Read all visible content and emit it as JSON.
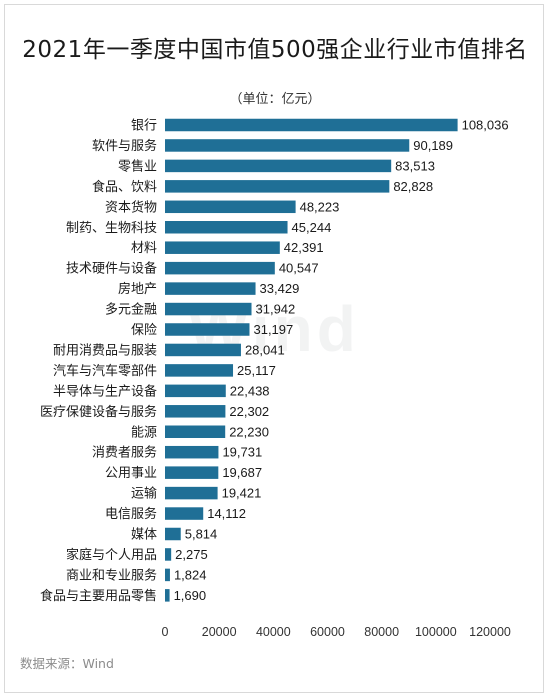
{
  "title": "2021年一季度中国市值500强企业行业市值排名",
  "unit_label": "（单位：亿元）",
  "source": "数据来源：Wind",
  "watermark": "Wind",
  "colors": {
    "bar": "#1f6f96",
    "axis_text": "#333333",
    "label_text": "#1a1a1a"
  },
  "chart_data": {
    "type": "bar",
    "orientation": "horizontal",
    "title": "2021年一季度中国市值500强企业行业市值排名",
    "xlabel": "",
    "ylabel": "",
    "unit": "亿元",
    "categories": [
      "银行",
      "软件与服务",
      "零售业",
      "食品、饮料",
      "资本货物",
      "制药、生物科技",
      "材料",
      "技术硬件与设备",
      "房地产",
      "多元金融",
      "保险",
      "耐用消费品与服装",
      "汽车与汽车零部件",
      "半导体与生产设备",
      "医疗保健设备与服务",
      "能源",
      "消费者服务",
      "公用事业",
      "运输",
      "电信服务",
      "媒体",
      "家庭与个人用品",
      "商业和专业服务",
      "食品与主要用品零售"
    ],
    "values": [
      108036,
      90189,
      83513,
      82828,
      48223,
      45244,
      42391,
      40547,
      33429,
      31942,
      31197,
      28041,
      25117,
      22438,
      22302,
      22230,
      19731,
      19687,
      19421,
      14112,
      5814,
      2275,
      1824,
      1690
    ],
    "value_labels": [
      "108,036",
      "90,189",
      "83,513",
      "82,828",
      "48,223",
      "45,244",
      "42,391",
      "40,547",
      "33,429",
      "31,942",
      "31,197",
      "28,041",
      "25,117",
      "22,438",
      "22,302",
      "22,230",
      "19,731",
      "19,687",
      "19,421",
      "14,112",
      "5,814",
      "2,275",
      "1,824",
      "1,690"
    ],
    "xlim": [
      0,
      120000
    ],
    "xticks": [
      0,
      20000,
      40000,
      60000,
      80000,
      100000,
      120000
    ],
    "xtick_labels": [
      "0",
      "20000",
      "40000",
      "60000",
      "80000",
      "100000",
      "120000"
    ],
    "grid": false,
    "legend": "none"
  }
}
